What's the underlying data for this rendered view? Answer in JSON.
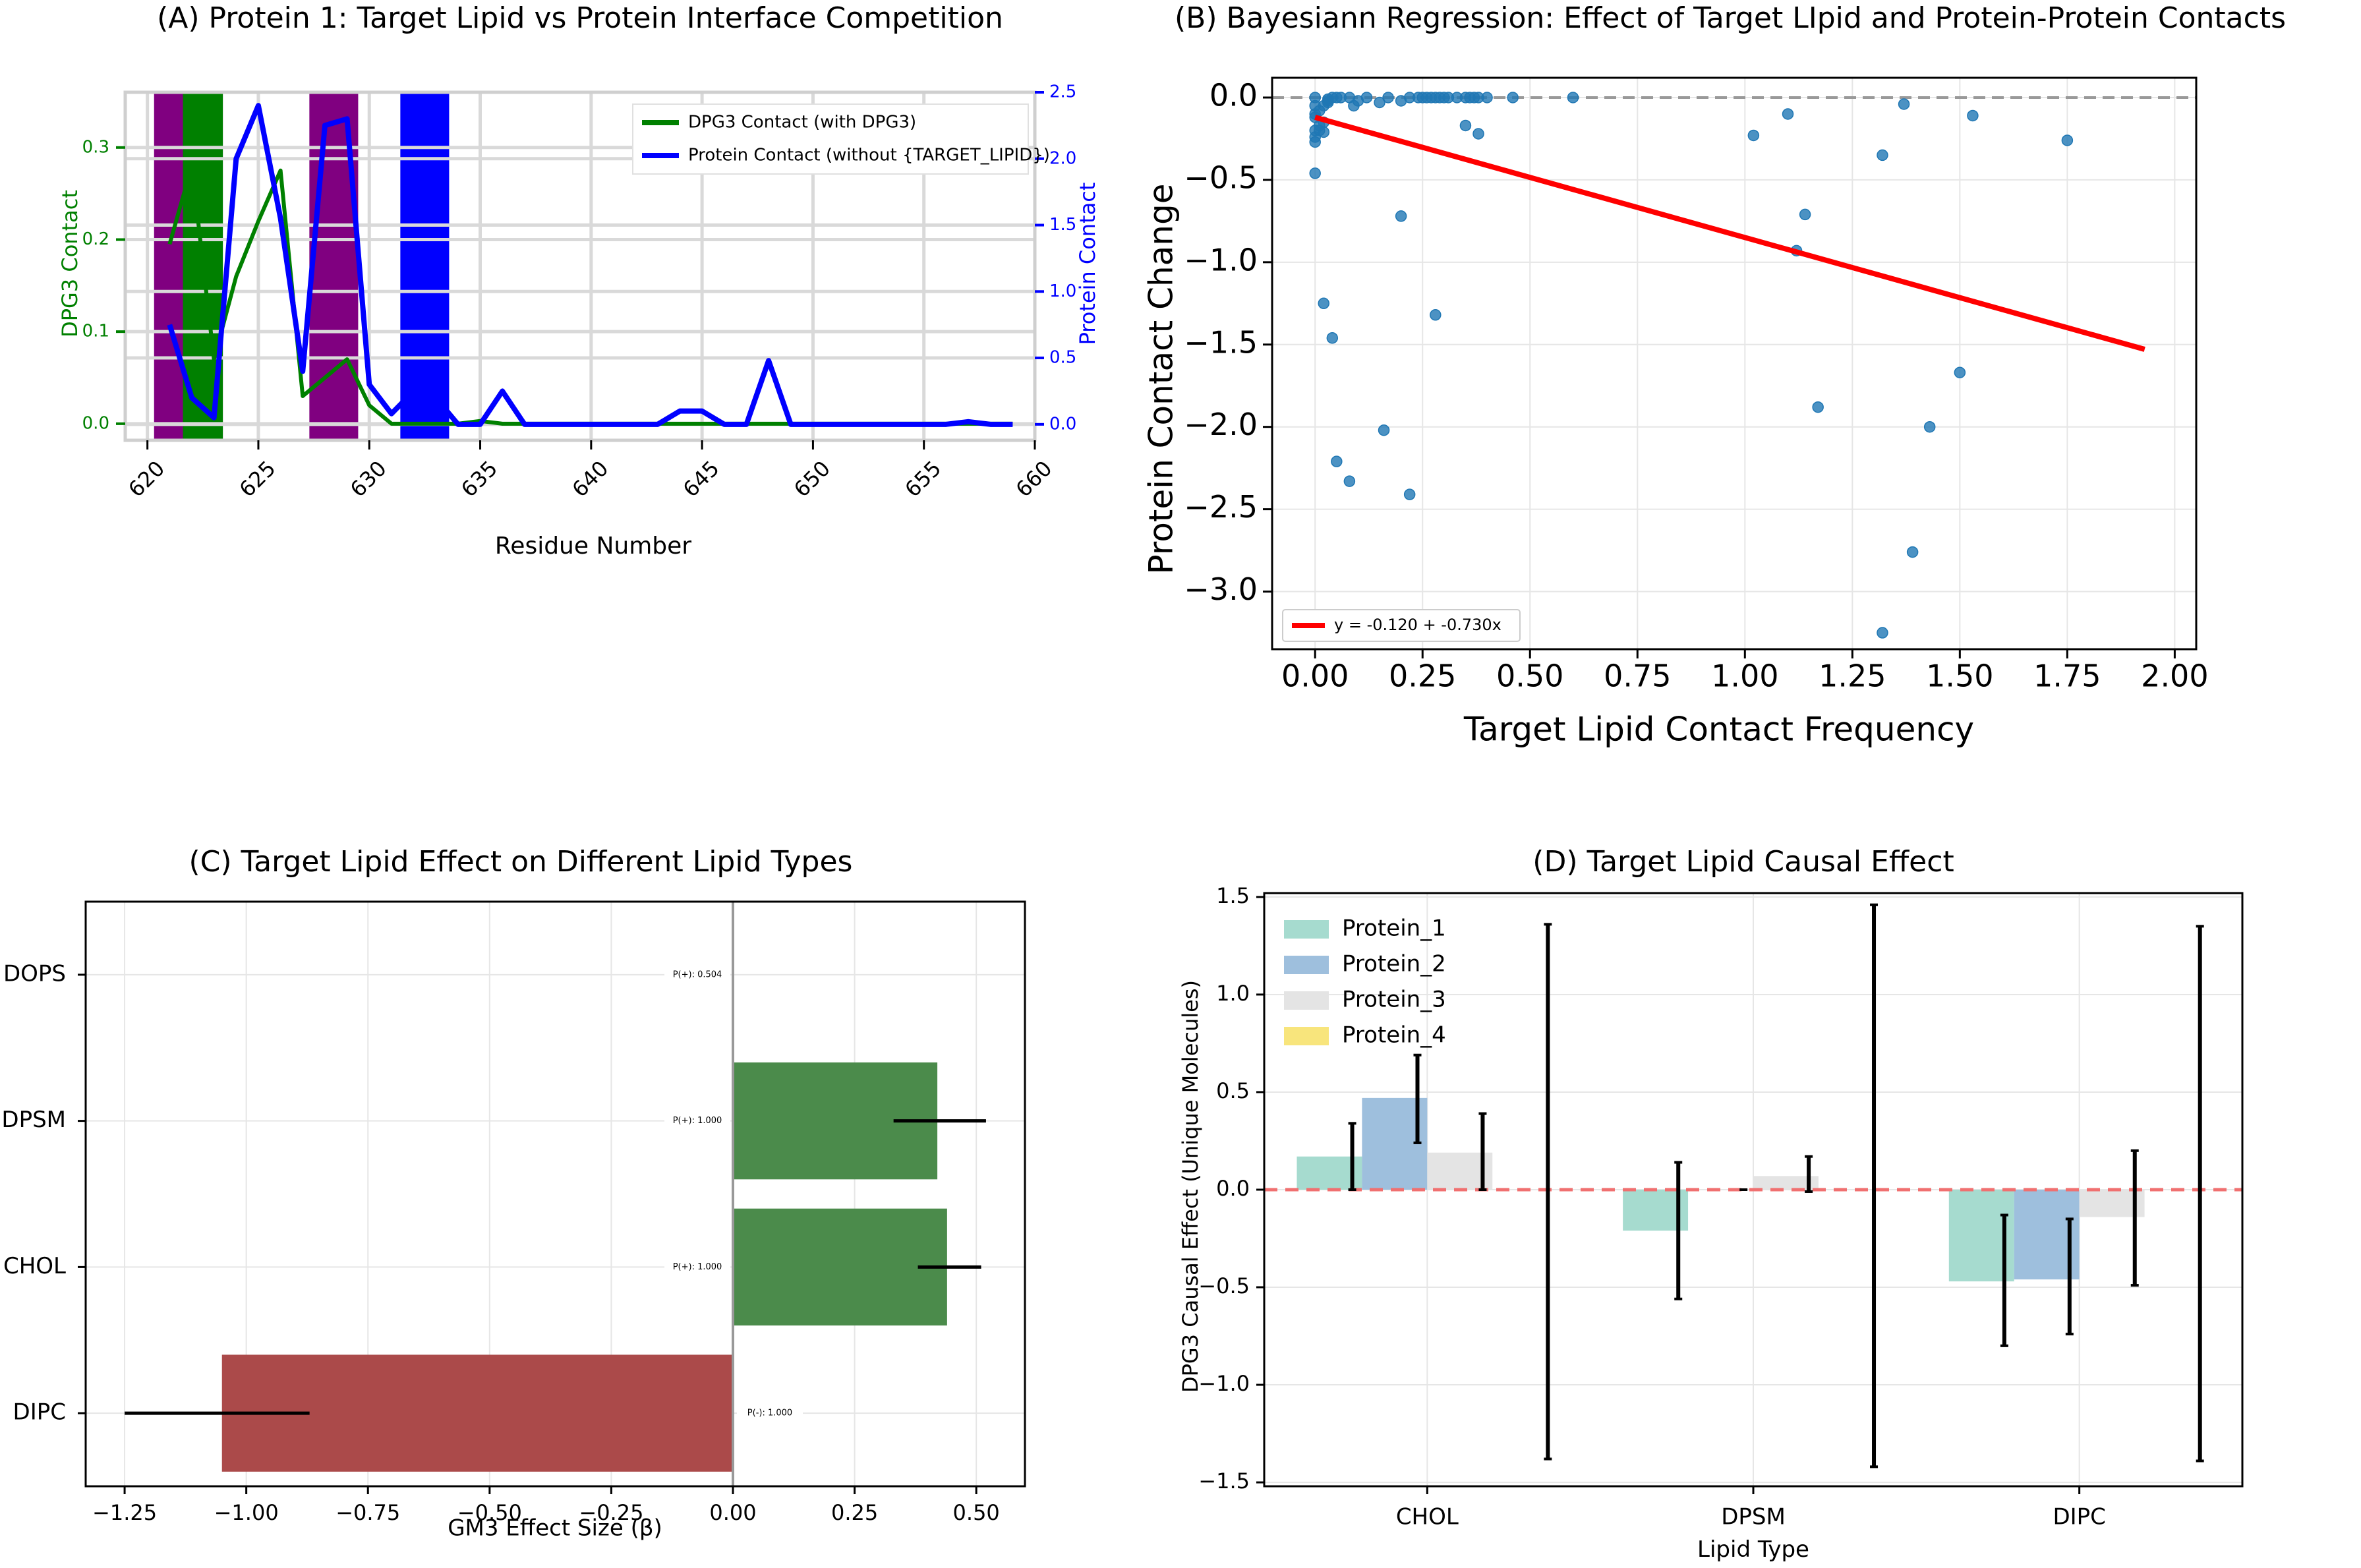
{
  "chart_data": [
    {
      "id": "A",
      "type": "line",
      "title": "(A)    Protein 1: Target Lipid vs Protein Interface Competition",
      "xlabel": "Residue Number",
      "ylabel_left": "DPG3 Contact",
      "ylabel_right": "Protein Contact",
      "xlim": [
        619,
        660
      ],
      "ylim_left": [
        -0.018,
        0.36
      ],
      "ylim_right": [
        -0.12,
        2.5
      ],
      "xticks": [
        620,
        625,
        630,
        635,
        640,
        645,
        650,
        655,
        660
      ],
      "yticks_left": [
        0.0,
        0.1,
        0.2,
        0.3
      ],
      "yticks_right": [
        0.0,
        0.5,
        1.0,
        1.5,
        2.0,
        2.5
      ],
      "xtick_labels": [
        "620",
        "625",
        "630",
        "635",
        "640",
        "645",
        "650",
        "655",
        "660"
      ],
      "ytick_labels_left": [
        "0.0",
        "0.1",
        "0.2",
        "0.3"
      ],
      "ytick_labels_right": [
        "0.0",
        "0.5",
        "1.0",
        "1.5",
        "2.0",
        "2.5"
      ],
      "legend_position": "upper-right",
      "shaded_regions": [
        {
          "x0": 620.3,
          "x1": 623.4,
          "color": "#800080"
        },
        {
          "x0": 621.6,
          "x1": 623.4,
          "color": "#008000"
        },
        {
          "x0": 627.3,
          "x1": 629.5,
          "color": "#800080"
        },
        {
          "x0": 631.4,
          "x1": 633.6,
          "color": "#0000ff"
        }
      ],
      "series": [
        {
          "name": "DPG3 Contact (with DPG3)",
          "color": "#008000",
          "axis": "left",
          "x": [
            621,
            622,
            623,
            624,
            625,
            626,
            627,
            628,
            629,
            630,
            631,
            632,
            633,
            634,
            635,
            636,
            637,
            638,
            639,
            640,
            641,
            642,
            643,
            644,
            645,
            646,
            647,
            648,
            649,
            650,
            651,
            652,
            653,
            654,
            655,
            656,
            657,
            658,
            659
          ],
          "values": [
            0.195,
            0.28,
            0.07,
            0.16,
            0.22,
            0.275,
            0.03,
            0.05,
            0.07,
            0.02,
            0.0,
            0.0,
            0.0,
            0.0,
            0.003,
            0.0,
            0.0,
            0.0,
            0.0,
            0.0,
            0.0,
            0.0,
            0.0,
            0.0,
            0.0,
            0.0,
            0.0,
            0.0,
            0.0,
            0.0,
            0.0,
            0.0,
            0.0,
            0.0,
            0.0,
            0.0,
            0.0,
            0.0,
            0.0
          ]
        },
        {
          "name": "Protein Contact (without {TARGET_LIPID})",
          "color": "#0000ff",
          "axis": "right",
          "x": [
            621,
            622,
            623,
            624,
            625,
            626,
            627,
            628,
            629,
            630,
            631,
            632,
            633,
            634,
            635,
            636,
            637,
            638,
            639,
            640,
            641,
            642,
            643,
            644,
            645,
            646,
            647,
            648,
            649,
            650,
            651,
            652,
            653,
            654,
            655,
            656,
            657,
            658,
            659
          ],
          "values": [
            0.75,
            0.2,
            0.05,
            2.0,
            2.4,
            1.55,
            0.4,
            2.25,
            2.3,
            0.3,
            0.08,
            0.25,
            0.2,
            0.0,
            0.0,
            0.25,
            0.0,
            0.0,
            0.0,
            0.0,
            0.0,
            0.0,
            0.0,
            0.1,
            0.1,
            0.0,
            0.0,
            0.48,
            0.0,
            0.0,
            0.0,
            0.0,
            0.0,
            0.0,
            0.0,
            0.0,
            0.02,
            0.0,
            0.0
          ]
        }
      ]
    },
    {
      "id": "B",
      "type": "scatter",
      "title": "(B)  Bayesiann Regression: Effect of Target LIpid and Protein-Protein Contacts",
      "xlabel": "Target Lipid Contact Frequency",
      "ylabel": "Protein Contact Change",
      "xlim": [
        -0.1,
        2.05
      ],
      "ylim": [
        -3.35,
        0.12
      ],
      "xticks": [
        0.0,
        0.25,
        0.5,
        0.75,
        1.0,
        1.25,
        1.5,
        1.75,
        2.0
      ],
      "yticks": [
        0.0,
        -0.5,
        -1.0,
        -1.5,
        -2.0,
        -2.5,
        -3.0
      ],
      "xtick_labels": [
        "0.00",
        "0.25",
        "0.50",
        "0.75",
        "1.00",
        "1.25",
        "1.50",
        "1.75",
        "2.00"
      ],
      "ytick_labels": [
        "0.0",
        "−0.5",
        "−1.0",
        "−1.5",
        "−2.0",
        "−2.5",
        "−3.0"
      ],
      "grid": true,
      "legend_position": "lower-left",
      "regression": {
        "label": "y = -0.120 + -0.730x",
        "intercept": -0.12,
        "slope": -0.73,
        "x_range": [
          0.0,
          1.93
        ],
        "color": "#ff0000"
      },
      "reference_line": {
        "y": 0.0,
        "style": "dashed",
        "color": "#999999"
      },
      "points": {
        "color": "#1f77b4",
        "x": [
          0.0,
          0.0,
          0.0,
          0.0,
          0.01,
          0.01,
          0.02,
          0.02,
          0.03,
          0.04,
          0.05,
          0.06,
          0.08,
          0.09,
          0.1,
          0.12,
          0.15,
          0.17,
          0.2,
          0.22,
          0.24,
          0.25,
          0.26,
          0.27,
          0.28,
          0.29,
          0.3,
          0.31,
          0.33,
          0.35,
          0.36,
          0.37,
          0.38,
          0.4,
          0.46,
          0.6,
          0.0,
          0.0,
          0.0,
          0.02,
          0.04,
          0.03,
          0.01,
          0.0,
          0.02,
          0.03,
          0.05,
          0.08,
          0.16,
          0.2,
          0.22,
          0.28,
          0.35,
          0.38,
          1.02,
          1.1,
          1.12,
          1.14,
          1.17,
          1.32,
          1.32,
          1.37,
          1.39,
          1.43,
          1.5,
          1.53,
          1.75
        ],
        "y": [
          0.0,
          -0.05,
          -0.12,
          -0.24,
          -0.2,
          -0.17,
          -0.15,
          -0.21,
          -0.03,
          0.0,
          0.0,
          0.0,
          0.0,
          -0.05,
          -0.02,
          0.0,
          -0.03,
          0.0,
          -0.02,
          0.0,
          0.0,
          0.0,
          0.0,
          0.0,
          0.0,
          0.0,
          0.0,
          0.0,
          0.0,
          0.0,
          0.0,
          0.0,
          0.0,
          0.0,
          0.0,
          0.0,
          -0.27,
          -0.46,
          -0.1,
          -1.25,
          -1.46,
          -0.01,
          -0.08,
          -0.2,
          -0.05,
          -0.02,
          -2.21,
          -2.33,
          -2.02,
          -0.72,
          -2.41,
          -1.32,
          -0.17,
          -0.22,
          -0.23,
          -0.1,
          -0.93,
          -0.71,
          -1.88,
          -0.35,
          -3.25,
          -0.04,
          -2.76,
          -2.0,
          -1.67,
          -0.11,
          -0.26
        ]
      }
    },
    {
      "id": "C",
      "type": "bar",
      "orientation": "horizontal",
      "title": "(C)  Target Lipid Effect on Different Lipid Types",
      "xlabel": "GM3 Effect Size (β)",
      "ylabel": "",
      "xlim": [
        -1.33,
        0.6
      ],
      "xticks": [
        -1.25,
        -1.0,
        -0.75,
        -0.5,
        -0.25,
        0.0,
        0.25,
        0.5
      ],
      "xtick_labels": [
        "−1.25",
        "−1.00",
        "−0.75",
        "−0.50",
        "−0.25",
        "0.00",
        "0.25",
        "0.50"
      ],
      "grid": true,
      "categories": [
        "DOPS",
        "DPSM",
        "CHOL",
        "DIPC"
      ],
      "values": [
        0.0,
        0.42,
        0.44,
        -1.05
      ],
      "errors": [
        [
          0.0,
          0.0
        ],
        [
          0.33,
          0.52
        ],
        [
          0.38,
          0.51
        ],
        [
          -1.25,
          -0.87
        ]
      ],
      "annotations": [
        "P(+): 0.504",
        "P(+): 1.000",
        "P(+): 1.000",
        "P(-): 1.000"
      ],
      "colors": [
        "#4b8b4b",
        "#4b8b4b",
        "#4b8b4b",
        "#ab4a4a"
      ]
    },
    {
      "id": "D",
      "type": "bar",
      "title": "(D)  Target Lipid Causal Effect",
      "xlabel": "Lipid Type",
      "ylabel": "DPG3 Causal Effect (Unique Molecules)",
      "ylim": [
        -1.52,
        1.52
      ],
      "yticks": [
        1.5,
        1.0,
        0.5,
        0.0,
        -0.5,
        -1.0,
        -1.5
      ],
      "ytick_labels": [
        "1.5",
        "1.0",
        "0.5",
        "0.0",
        "−0.5",
        "−1.0",
        "−1.5"
      ],
      "grid": true,
      "legend_position": "upper-left",
      "reference_line": {
        "y": 0.0,
        "style": "dashed",
        "color": "#f07070"
      },
      "categories": [
        "CHOL",
        "DPSM",
        "DIPC"
      ],
      "series": [
        {
          "name": "Protein_1",
          "color": "#a6dbcf",
          "values": [
            0.17,
            -0.21,
            -0.47
          ],
          "err_low": [
            0.0,
            -0.56,
            -0.8
          ],
          "err_high": [
            0.34,
            0.14,
            -0.13
          ]
        },
        {
          "name": "Protein_2",
          "color": "#9ebfdd",
          "values": [
            0.47,
            0.0,
            -0.46
          ],
          "err_low": [
            0.24,
            0.0,
            -0.74
          ],
          "err_high": [
            0.69,
            0.0,
            -0.15
          ]
        },
        {
          "name": "Protein_3",
          "color": "#e4e4e4",
          "values": [
            0.19,
            0.07,
            -0.14
          ],
          "err_low": [
            0.0,
            -0.01,
            -0.49
          ],
          "err_high": [
            0.39,
            0.17,
            0.2
          ]
        },
        {
          "name": "Protein_4",
          "color": "#f8e57c",
          "values": [
            0.0,
            0.0,
            0.0
          ],
          "err_low": [
            -1.38,
            -1.42,
            -1.39
          ],
          "err_high": [
            1.36,
            1.46,
            1.35
          ]
        }
      ]
    }
  ]
}
